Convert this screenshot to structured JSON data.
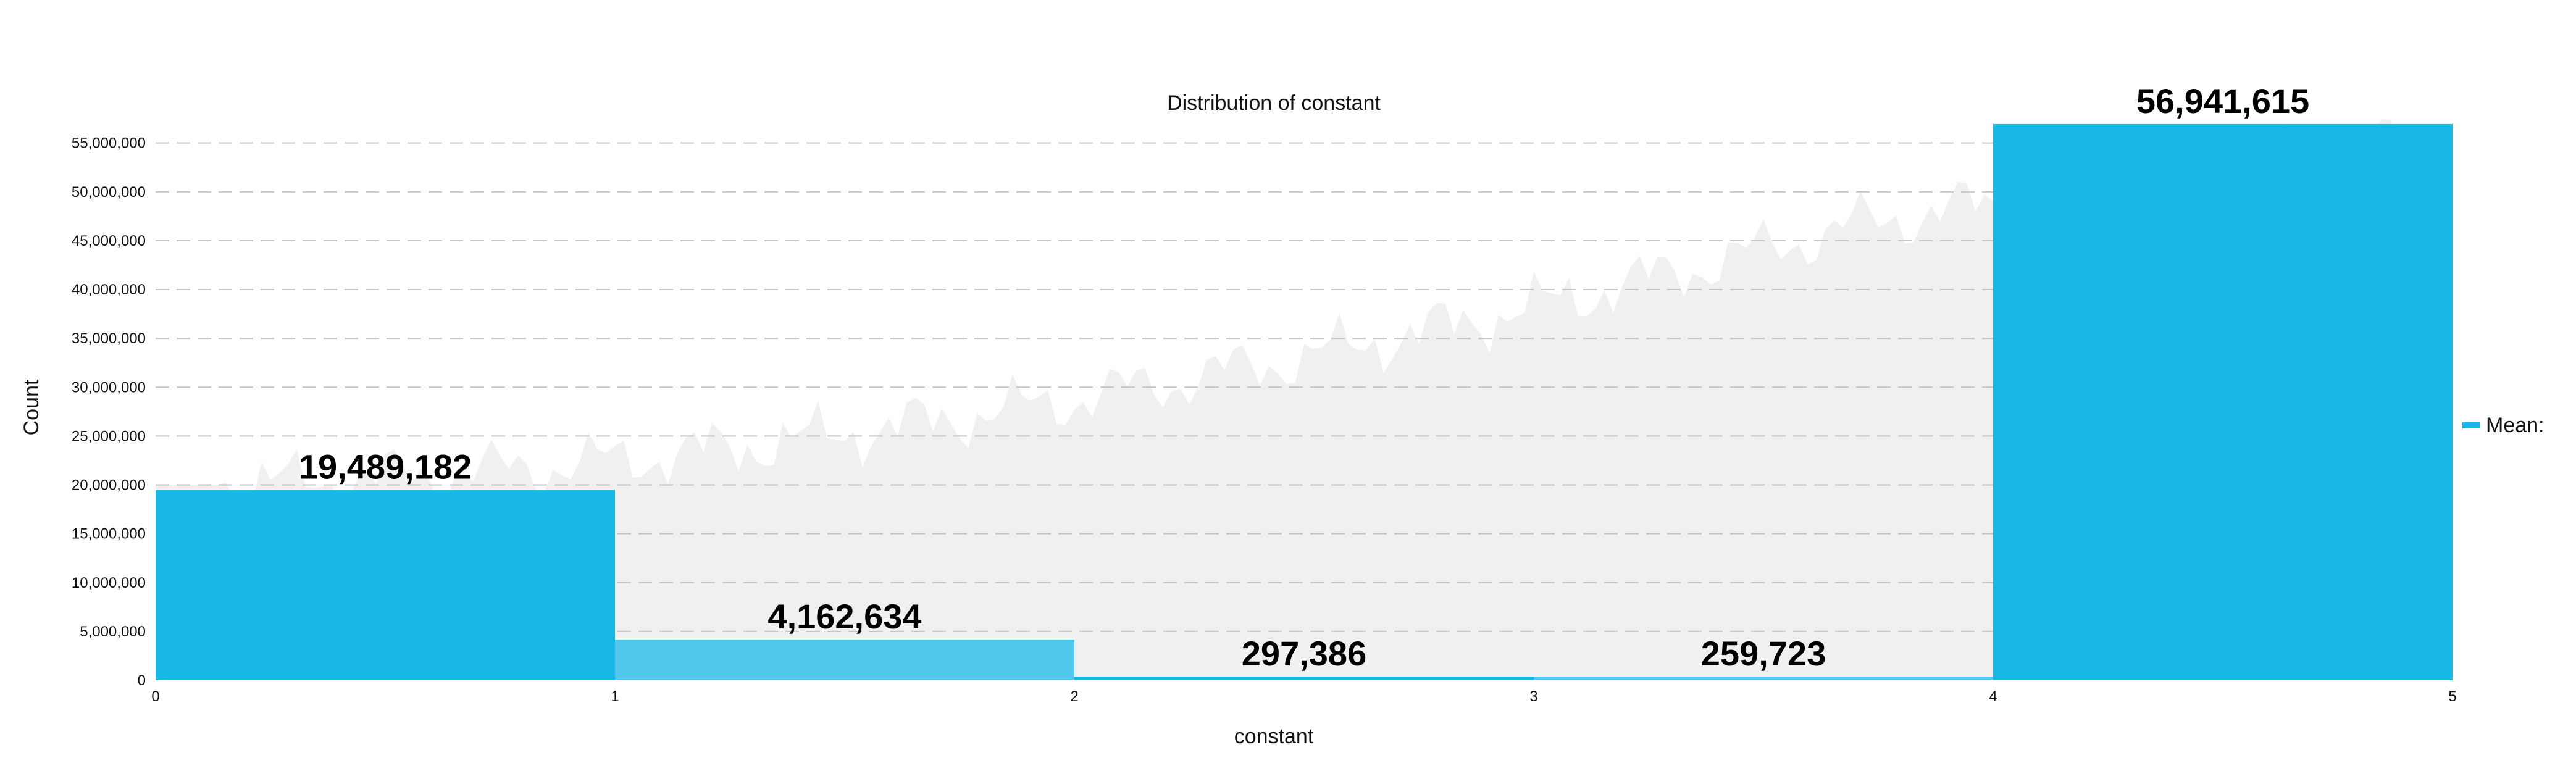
{
  "chart_data": {
    "type": "bar",
    "title": "Distribution of constant",
    "xlabel": "constant",
    "ylabel": "Count",
    "bins": [
      {
        "x0": 0,
        "x1": 1,
        "value": 19489182,
        "label": "19,489,182",
        "color": "#18b8e4"
      },
      {
        "x0": 1,
        "x1": 2,
        "value": 4162634,
        "label": "4,162,634",
        "color": "#52c9ec"
      },
      {
        "x0": 2,
        "x1": 3,
        "value": 297386,
        "label": "297,386",
        "color": "#18b8e4"
      },
      {
        "x0": 3,
        "x1": 4,
        "value": 259723,
        "label": "259,723",
        "color": "#52c9ec"
      },
      {
        "x0": 4,
        "x1": 5,
        "value": 56941615,
        "label": "56,941,615",
        "color": "#18b8e4"
      }
    ],
    "xlim": [
      0,
      5
    ],
    "ylim": [
      0,
      57000000
    ],
    "x_ticks": [
      "0",
      "1",
      "2",
      "3",
      "4",
      "5"
    ],
    "y_ticks": [
      "0",
      "5,000,000",
      "10,000,000",
      "15,000,000",
      "20,000,000",
      "25,000,000",
      "30,000,000",
      "35,000,000",
      "40,000,000",
      "45,000,000",
      "50,000,000",
      "55,000,000"
    ],
    "y_tick_values": [
      0,
      5000000,
      10000000,
      15000000,
      20000000,
      25000000,
      30000000,
      35000000,
      40000000,
      45000000,
      50000000,
      55000000
    ],
    "grid": true,
    "legend": {
      "position": "right",
      "label": "Mean:",
      "color": "#18b8e4"
    },
    "background_series_color": "#f0f0f0"
  }
}
